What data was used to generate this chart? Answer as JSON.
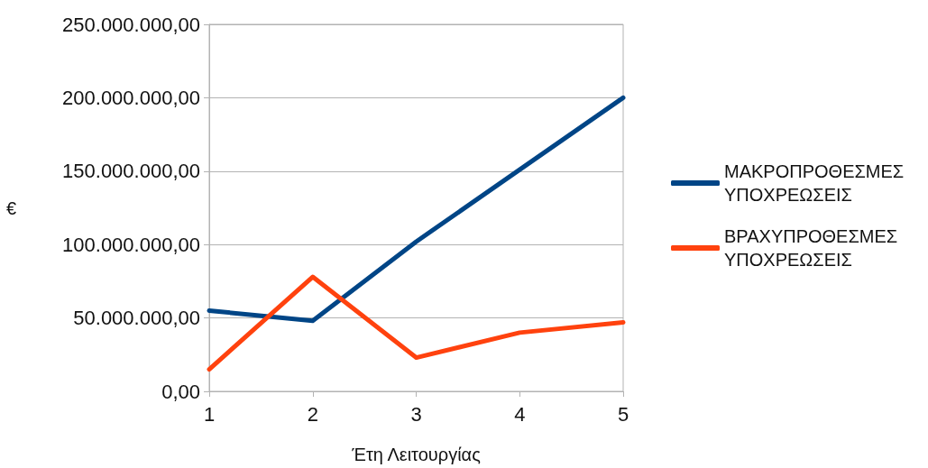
{
  "chart_data": {
    "type": "line",
    "xlabel": "Έτη Λειτουργίας",
    "ylabel": "€",
    "x": [
      1,
      2,
      3,
      4,
      5
    ],
    "xlim": [
      1,
      5
    ],
    "xticks": [
      1,
      2,
      3,
      4,
      5
    ],
    "ylim": [
      0,
      250000000
    ],
    "yticks": [
      {
        "value": 0,
        "label": "0,00"
      },
      {
        "value": 50000000,
        "label": "50.000.000,00"
      },
      {
        "value": 100000000,
        "label": "100.000.000,00"
      },
      {
        "value": 150000000,
        "label": "150.000.000,00"
      },
      {
        "value": 200000000,
        "label": "200.000.000,00"
      },
      {
        "value": 250000000,
        "label": "250.000.000,00"
      }
    ],
    "grid": "y",
    "legend": "right",
    "marker": "none",
    "line_style": "solid",
    "series": [
      {
        "name": "ΜΑΚΡΟΠΡΟΘΕΣΜΕΣ ΥΠΟΧΡΕΩΣΕΙΣ",
        "color": "#004586",
        "values": [
          55000000,
          48000000,
          102000000,
          151000000,
          200000000
        ]
      },
      {
        "name": "ΒΡΑΧΥΠΡΟΘΕΣΜΕΣ ΥΠΟΧΡΕΩΣΕΙΣ",
        "color": "#ff420e",
        "values": [
          15000000,
          78000000,
          23000000,
          40000000,
          47000000
        ]
      }
    ]
  }
}
